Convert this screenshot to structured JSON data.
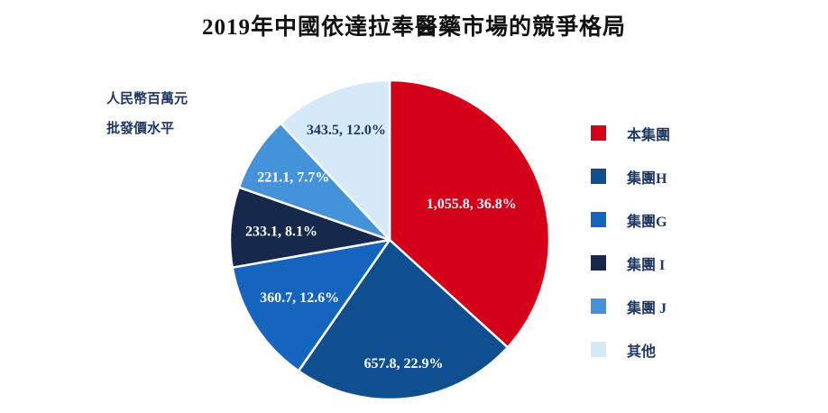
{
  "chart_data": {
    "type": "pie",
    "title": "2019年中國依達拉奉醫藥市場的競爭格局",
    "unit_note": [
      "人民幣百萬元",
      "批發價水平"
    ],
    "start_angle_deg": 0,
    "direction": "clockwise",
    "legend_position": "right",
    "grid": false,
    "value_unit": "RMB million (wholesale price level)",
    "slices": [
      {
        "label": "本集團",
        "value": 1055.8,
        "pct": 36.8,
        "display": "1,055.8, 36.8%",
        "color": "#d40019",
        "label_color": "#ffffff"
      },
      {
        "label": "集團H",
        "value": 657.8,
        "pct": 22.9,
        "display": "657.8, 22.9%",
        "color": "#0f4e8f",
        "label_color": "#ffffff"
      },
      {
        "label": "集團G",
        "value": 360.7,
        "pct": 12.6,
        "display": "360.7, 12.6%",
        "color": "#1565bf",
        "label_color": "#ffffff"
      },
      {
        "label": "集團 I",
        "value": 233.1,
        "pct": 8.1,
        "display": "233.1, 8.1%",
        "color": "#16294d",
        "label_color": "#ffffff"
      },
      {
        "label": "集團 J",
        "value": 221.1,
        "pct": 7.7,
        "display": "221.1, 7.7%",
        "color": "#4493da",
        "label_color": "#ffffff"
      },
      {
        "label": "其他",
        "value": 343.5,
        "pct": 12.0,
        "display": "343.5, 12.0%",
        "color": "#d6e9f8",
        "label_color": "#1f3864"
      }
    ]
  }
}
